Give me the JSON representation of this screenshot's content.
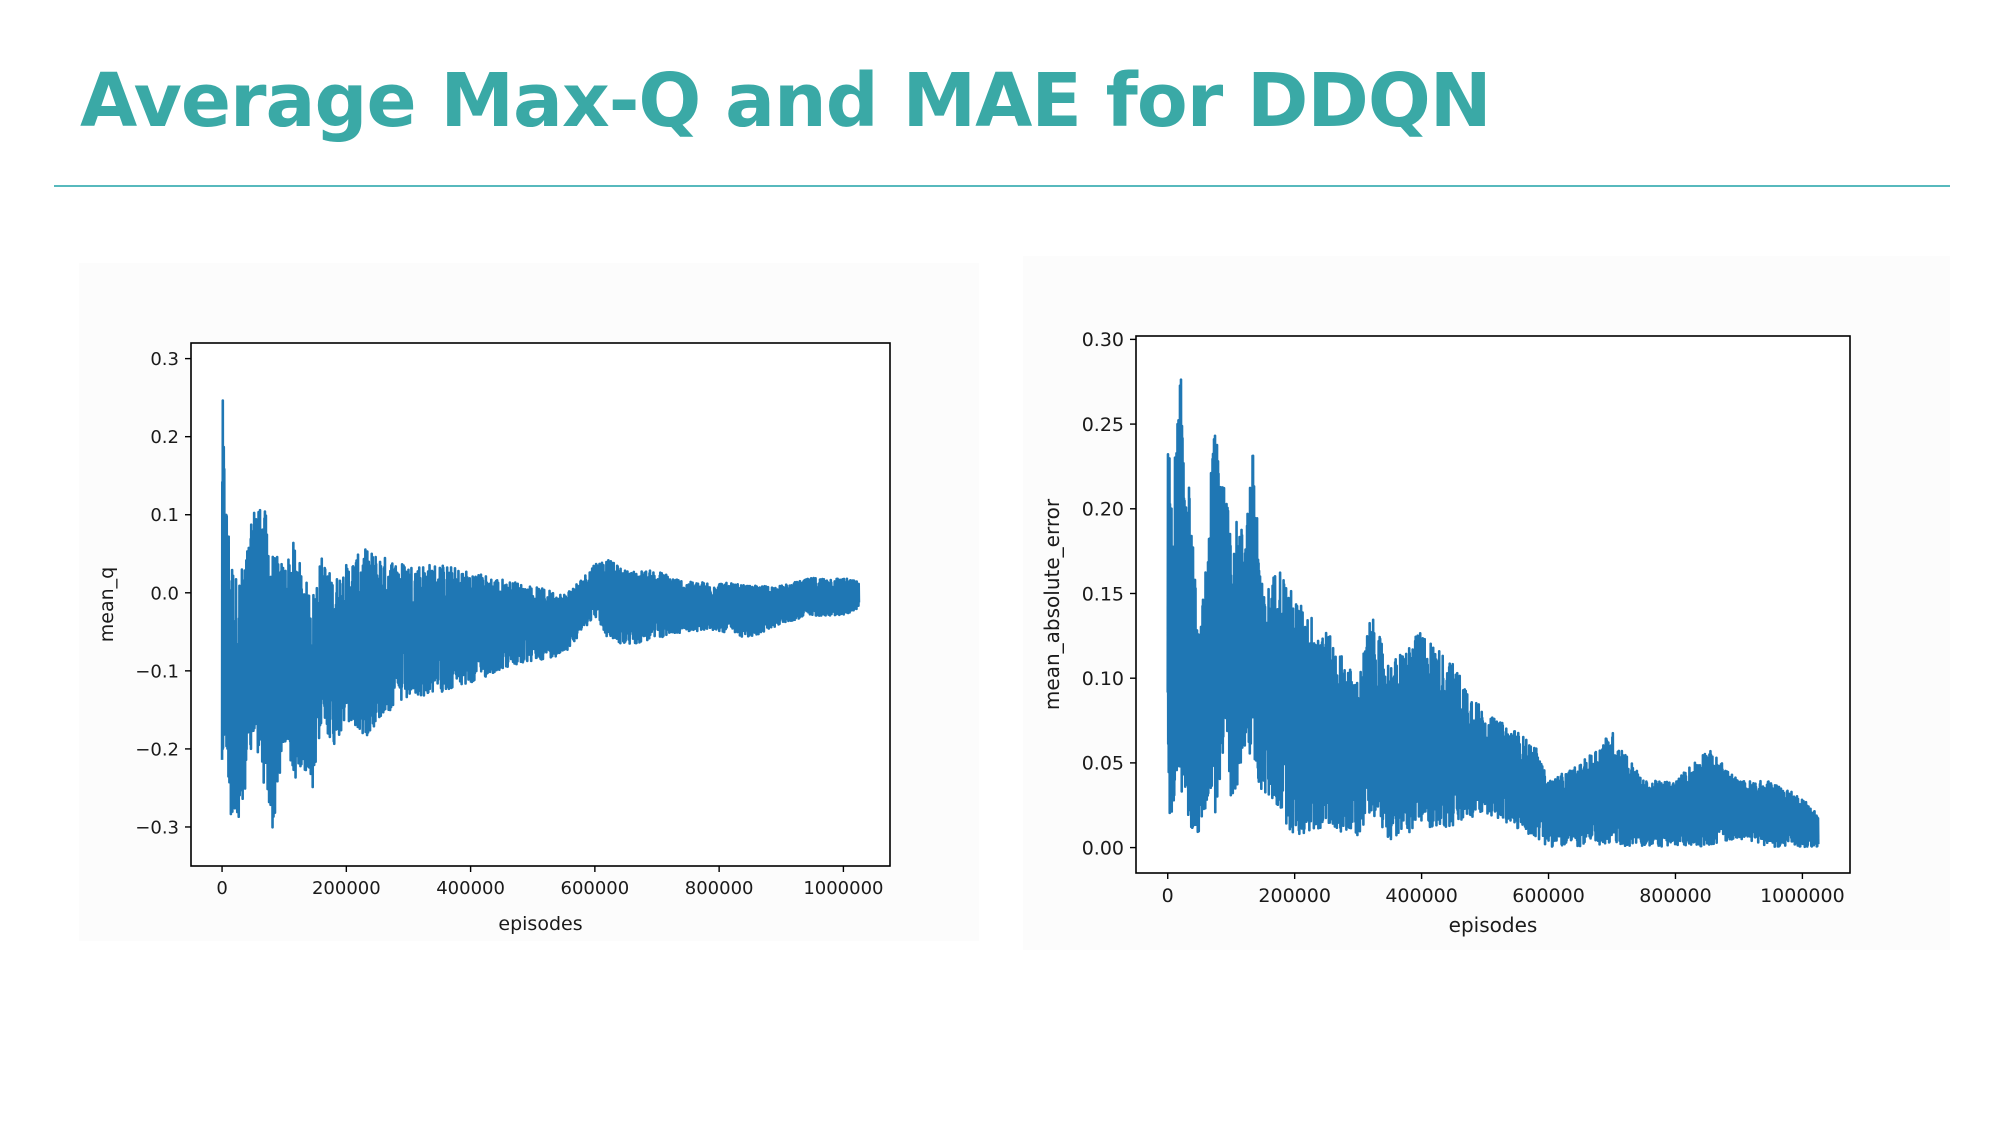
{
  "slide": {
    "title": "Average Max-Q and MAE for DDQN",
    "accent_color": "#3aa9a6"
  },
  "chart_data": [
    {
      "type": "line",
      "series_color": "#1f77b4",
      "xlabel": "episodes",
      "ylabel": "mean_q",
      "xlim": [
        -50000,
        1075000
      ],
      "ylim": [
        -0.35,
        0.32
      ],
      "xticks": [
        0,
        200000,
        400000,
        600000,
        800000,
        1000000
      ],
      "xtick_labels": [
        "0",
        "200000",
        "400000",
        "600000",
        "800000",
        "1000000"
      ],
      "yticks": [
        -0.3,
        -0.2,
        -0.1,
        0.0,
        0.1,
        0.2,
        0.3
      ],
      "ytick_labels": [
        "−0.3",
        "−0.2",
        "−0.1",
        "0.0",
        "0.1",
        "0.2",
        "0.3"
      ],
      "grid": false,
      "envelope": {
        "x": [
          0,
          5000,
          15000,
          25000,
          40000,
          55000,
          70000,
          80000,
          100000,
          115000,
          130000,
          145000,
          160000,
          180000,
          200000,
          230000,
          260000,
          300000,
          350000,
          400000,
          450000,
          500000,
          550000,
          580000,
          600000,
          620000,
          650000,
          700000,
          750000,
          800000,
          850000,
          900000,
          950000,
          1000000,
          1025000
        ],
        "upper": [
          0.29,
          0.14,
          0.05,
          0.02,
          0.06,
          0.13,
          0.11,
          0.06,
          0.04,
          0.07,
          0.03,
          0.0,
          0.05,
          0.02,
          0.04,
          0.06,
          0.05,
          0.04,
          0.04,
          0.03,
          0.02,
          0.01,
          0.0,
          0.02,
          0.04,
          0.045,
          0.03,
          0.03,
          0.015,
          0.015,
          0.01,
          0.01,
          0.02,
          0.02,
          0.015
        ],
        "lower": [
          -0.28,
          -0.19,
          -0.3,
          -0.32,
          -0.24,
          -0.2,
          -0.27,
          -0.32,
          -0.2,
          -0.25,
          -0.22,
          -0.27,
          -0.17,
          -0.2,
          -0.17,
          -0.19,
          -0.16,
          -0.14,
          -0.13,
          -0.12,
          -0.1,
          -0.09,
          -0.08,
          -0.05,
          -0.03,
          -0.06,
          -0.07,
          -0.06,
          -0.05,
          -0.05,
          -0.06,
          -0.04,
          -0.03,
          -0.03,
          -0.02
        ]
      }
    },
    {
      "type": "line",
      "series_color": "#1f77b4",
      "xlabel": "episodes",
      "ylabel": "mean_absolute_error",
      "xlim": [
        -50000,
        1075000
      ],
      "ylim": [
        -0.015,
        0.302
      ],
      "xticks": [
        0,
        200000,
        400000,
        600000,
        800000,
        1000000
      ],
      "xtick_labels": [
        "0",
        "200000",
        "400000",
        "600000",
        "800000",
        "1000000"
      ],
      "yticks": [
        0.0,
        0.05,
        0.1,
        0.15,
        0.2,
        0.25,
        0.3
      ],
      "ytick_labels": [
        "0.00",
        "0.05",
        "0.10",
        "0.15",
        "0.20",
        "0.25",
        "0.30"
      ],
      "grid": false,
      "envelope": {
        "x": [
          0,
          5000,
          20000,
          35000,
          50000,
          65000,
          75000,
          90000,
          100000,
          120000,
          135000,
          150000,
          175000,
          200000,
          250000,
          300000,
          320000,
          350000,
          400000,
          450000,
          500000,
          550000,
          580000,
          600000,
          650000,
          700000,
          750000,
          800000,
          850000,
          900000,
          950000,
          1000000,
          1025000
        ],
        "upper": [
          0.29,
          0.2,
          0.285,
          0.21,
          0.12,
          0.2,
          0.275,
          0.21,
          0.2,
          0.19,
          0.24,
          0.15,
          0.17,
          0.15,
          0.13,
          0.1,
          0.14,
          0.11,
          0.13,
          0.11,
          0.08,
          0.07,
          0.06,
          0.04,
          0.05,
          0.07,
          0.04,
          0.04,
          0.06,
          0.04,
          0.04,
          0.03,
          0.02
        ],
        "lower": [
          0.02,
          0.012,
          0.03,
          0.005,
          0.006,
          0.03,
          0.015,
          0.05,
          0.01,
          0.06,
          0.04,
          0.03,
          0.02,
          0.003,
          0.01,
          0.005,
          0.02,
          0.003,
          0.01,
          0.01,
          0.02,
          0.01,
          0.005,
          0.0,
          0.0,
          0.0,
          0.0,
          0.0,
          0.0,
          0.005,
          0.0,
          0.0,
          0.0
        ]
      }
    }
  ]
}
